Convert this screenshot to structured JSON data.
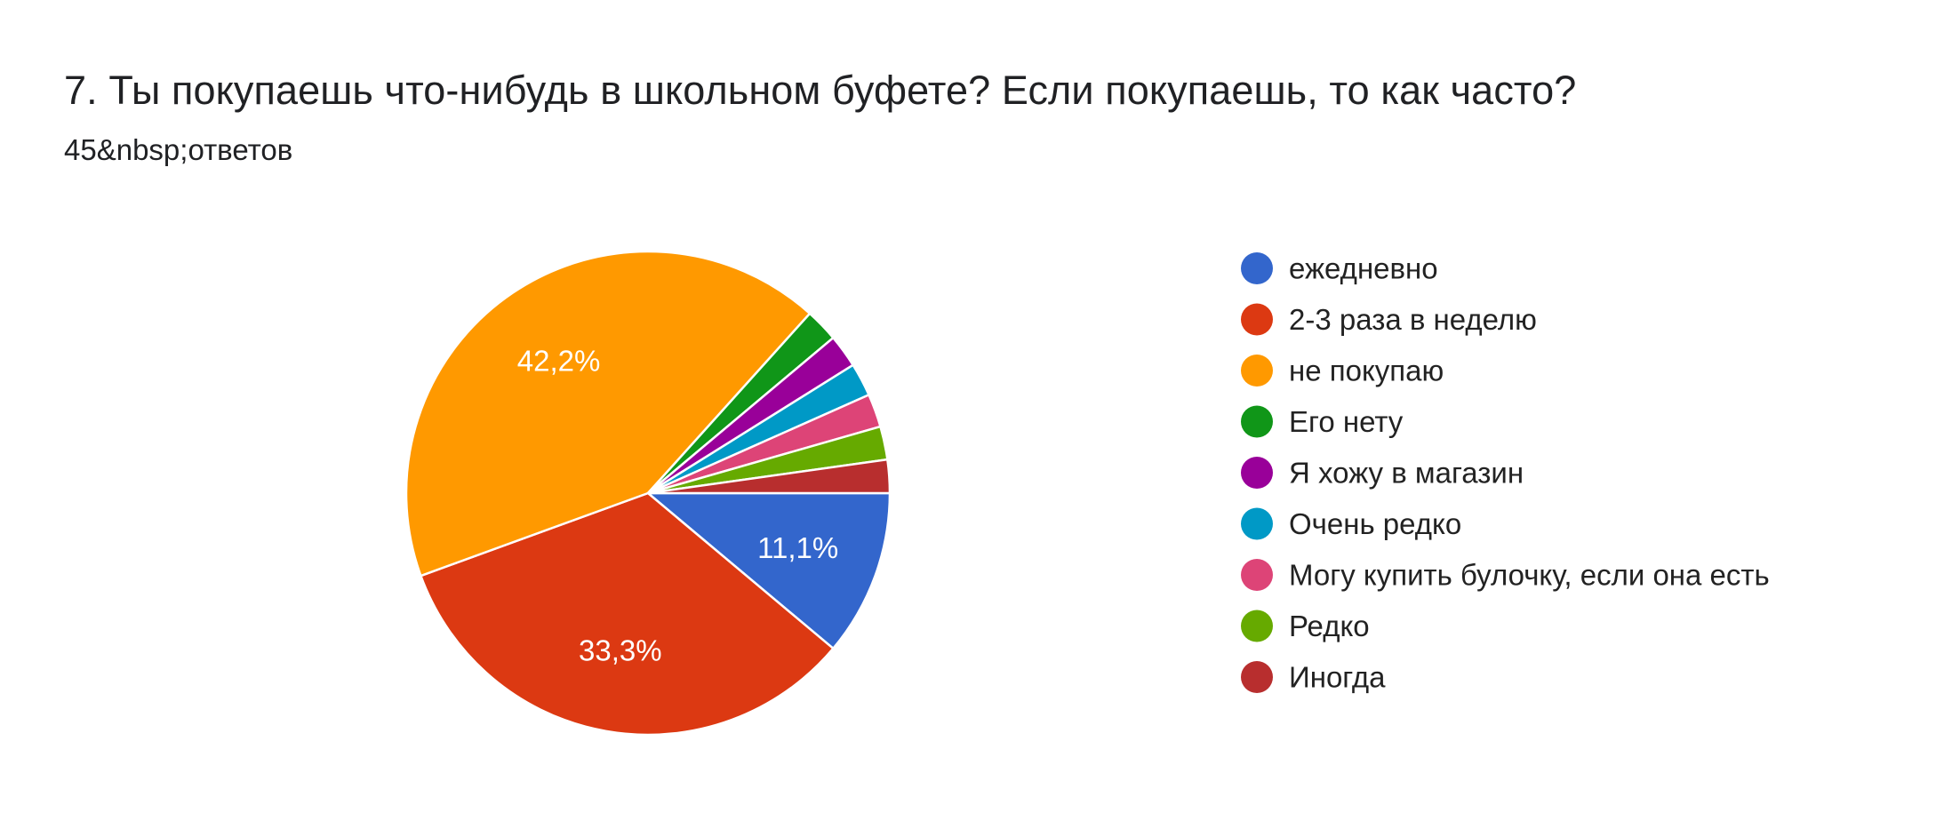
{
  "question": {
    "title": "7. Ты покупаешь что-нибудь в школьном буфете? Если покупаешь, то как часто?",
    "response_count": "45&nbsp;ответов"
  },
  "chart_data": {
    "type": "pie",
    "total_responses": 45,
    "slices": [
      {
        "label": "ежедневно",
        "value": 5,
        "percent_label": "11,1%",
        "color": "#3366cc"
      },
      {
        "label": "2-3 раза в неделю",
        "value": 15,
        "percent_label": "33,3%",
        "color": "#dc3912"
      },
      {
        "label": "не покупаю",
        "value": 19,
        "percent_label": "42,2%",
        "color": "#ff9900"
      },
      {
        "label": "Его нету",
        "value": 1,
        "percent_label": "",
        "color": "#109618"
      },
      {
        "label": "Я хожу в магазин",
        "value": 1,
        "percent_label": "",
        "color": "#990099"
      },
      {
        "label": "Очень редко",
        "value": 1,
        "percent_label": "",
        "color": "#0099c6"
      },
      {
        "label": "Могу купить булочку, если она есть",
        "value": 1,
        "percent_label": "",
        "color": "#dd4477"
      },
      {
        "label": "Редко",
        "value": 1,
        "percent_label": "",
        "color": "#66aa00"
      },
      {
        "label": "Иногда",
        "value": 1,
        "percent_label": "",
        "color": "#b82e2e"
      }
    ],
    "legend_position": "right"
  }
}
